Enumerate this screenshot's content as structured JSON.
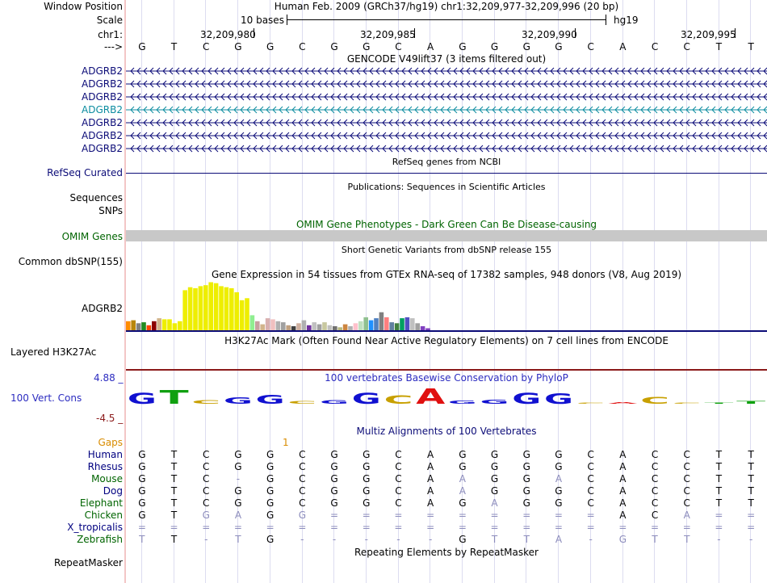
{
  "header": {
    "window_position_label": "Window Position",
    "scale_label": "Scale",
    "chrom_label": "chr1:",
    "strand_label": "--->",
    "assembly_title": "Human Feb. 2009 (GRCh37/hg19)   chr1:32,209,977-32,209,996 (20 bp)",
    "scale_text": "10 bases",
    "scale_db": "hg19",
    "positions": [
      "32,209,980",
      "32,209,985",
      "32,209,990",
      "32,209,995"
    ]
  },
  "reference_bases": [
    "G",
    "T",
    "C",
    "G",
    "G",
    "C",
    "G",
    "G",
    "C",
    "A",
    "G",
    "G",
    "G",
    "G",
    "C",
    "A",
    "C",
    "C",
    "T",
    "T"
  ],
  "gencode": {
    "title": "GENCODE V49lift37 (3 items filtered out)",
    "genes": [
      "ADGRB2",
      "ADGRB2",
      "ADGRB2",
      "ADGRB2",
      "ADGRB2",
      "ADGRB2",
      "ADGRB2"
    ]
  },
  "refseq": {
    "title": "RefSeq genes from NCBI",
    "label": "RefSeq Curated"
  },
  "publications": {
    "title": "Publications: Sequences in Scientific Articles",
    "label": "Sequences"
  },
  "snps": {
    "label": "SNPs"
  },
  "omim": {
    "title": "OMIM Gene Phenotypes - Dark Green Can Be Disease-causing",
    "label": "OMIM Genes"
  },
  "dbsnp": {
    "title": "Short Genetic Variants from dbSNP release 155",
    "label": "Common dbSNP(155)"
  },
  "gtex": {
    "title": "Gene Expression in 54 tissues from GTEx RNA-seq of 17382 samples, 948 donors (V8, Aug 2019)",
    "label": "ADGRB2"
  },
  "h3k27ac": {
    "title": "H3K27Ac Mark (Often Found Near Active Regulatory Elements) on 7 cell lines from ENCODE",
    "label": "Layered H3K27Ac"
  },
  "conservation": {
    "title": "100 vertebrates Basewise Conservation by PhyloP",
    "label": "100 Vert. Cons",
    "max": "4.88 _",
    "min": "-4.5 _"
  },
  "multiz": {
    "title": "Multiz Alignments of 100 Vertebrates",
    "gaps_label": "Gaps",
    "gaps_value": "1",
    "species": [
      {
        "name": "Human",
        "color": "#000080",
        "bases": [
          "G",
          "T",
          "C",
          "G",
          "G",
          "C",
          "G",
          "G",
          "C",
          "A",
          "G",
          "G",
          "G",
          "G",
          "C",
          "A",
          "C",
          "C",
          "T",
          "T"
        ]
      },
      {
        "name": "Rhesus",
        "color": "#000080",
        "bases": [
          "G",
          "T",
          "C",
          "G",
          "G",
          "C",
          "G",
          "G",
          "C",
          "A",
          "G",
          "G",
          "G",
          "G",
          "C",
          "A",
          "C",
          "C",
          "T",
          "T"
        ]
      },
      {
        "name": "Mouse",
        "color": "#006400",
        "bases": [
          "G",
          "T",
          "C",
          "-",
          "G",
          "C",
          "G",
          "G",
          "C",
          "A",
          "A",
          "G",
          "G",
          "A",
          "C",
          "A",
          "C",
          "C",
          "T",
          "T"
        ]
      },
      {
        "name": "Dog",
        "color": "#000080",
        "bases": [
          "G",
          "T",
          "C",
          "G",
          "G",
          "C",
          "G",
          "G",
          "C",
          "A",
          "A",
          "G",
          "G",
          "G",
          "C",
          "A",
          "C",
          "C",
          "T",
          "T"
        ]
      },
      {
        "name": "Elephant",
        "color": "#006400",
        "bases": [
          "G",
          "T",
          "C",
          "G",
          "G",
          "C",
          "G",
          "G",
          "C",
          "A",
          "G",
          "A",
          "G",
          "G",
          "C",
          "A",
          "C",
          "C",
          "T",
          "T"
        ]
      },
      {
        "name": "Chicken",
        "color": "#006400",
        "bases": [
          "G",
          "T",
          "G",
          "A",
          "G",
          "G",
          "=",
          "=",
          "=",
          "=",
          "=",
          "=",
          "=",
          "=",
          "=",
          "A",
          "C",
          "A",
          "=",
          "="
        ]
      },
      {
        "name": "X_tropicalis",
        "color": "#000080",
        "bases": [
          "=",
          "=",
          "=",
          "=",
          "=",
          "=",
          "=",
          "=",
          "=",
          "=",
          "=",
          "=",
          "=",
          "=",
          "=",
          "=",
          "=",
          "=",
          "=",
          "="
        ]
      },
      {
        "name": "Zebrafish",
        "color": "#006400",
        "bases": [
          "T",
          "T",
          "-",
          "T",
          "G",
          "-",
          "-",
          "-",
          "-",
          "-",
          "G",
          "T",
          "T",
          "A",
          "-",
          "G",
          "T",
          "T",
          "-",
          "-"
        ]
      }
    ]
  },
  "repeatmasker": {
    "title": "Repeating Elements by RepeatMasker",
    "label": "RepeatMasker"
  },
  "colors": {
    "gene_blue": "#0c0c78",
    "gene_teal": "#0c8ca0",
    "omim_green": "#006400",
    "omim_bar": "#c8c8c8",
    "refseq_line": "#0c0c78",
    "h3k27ac_line": "#8b1a1a",
    "gaps_orange": "#d98c00",
    "cons_blue": "#2c2cc0"
  },
  "gtex_bars": {
    "values": [
      18,
      20,
      14,
      16,
      10,
      18,
      24,
      22,
      22,
      14,
      18,
      80,
      86,
      84,
      88,
      90,
      96,
      94,
      88,
      86,
      84,
      76,
      60,
      64,
      30,
      18,
      12,
      24,
      22,
      18,
      16,
      10,
      8,
      14,
      20,
      10,
      16,
      12,
      16,
      10,
      8,
      6,
      12,
      8,
      14,
      18,
      26,
      20,
      24,
      36,
      26,
      16,
      14,
      24,
      26,
      24,
      14,
      8,
      4
    ],
    "colors": [
      "#ff8c00",
      "#b8860b",
      "#808080",
      "#228b22",
      "#ff4500",
      "#8b0000",
      "#d2b48c",
      "#eeee00",
      "#eeee00",
      "#eeee00",
      "#eeee00",
      "#eeee00",
      "#eeee00",
      "#eeee00",
      "#eeee00",
      "#eeee00",
      "#eeee00",
      "#eeee00",
      "#eeee00",
      "#eeee00",
      "#eeee00",
      "#eeee00",
      "#eeee00",
      "#eeee00",
      "#90ee90",
      "#c8a0a0",
      "#d2b48c",
      "#d9b0b0",
      "#f0c0c0",
      "#b0b0b0",
      "#a0a0a0",
      "#c0a080",
      "#404040",
      "#d0b0a0",
      "#b0b0b0",
      "#7030a0",
      "#c0c0c0",
      "#a0a0a0",
      "#c8c8a0",
      "#c0c0c0",
      "#707070",
      "#b8b880",
      "#cd853f",
      "#b0b0b0",
      "#ffc0cb",
      "#c0e0c0",
      "#90c090",
      "#1e90ff",
      "#5080c0",
      "#808080",
      "#ff7f7f",
      "#6080a0",
      "#408040",
      "#00a060",
      "#5050c0",
      "#c0c0c0",
      "#a0a0a0",
      "#8040c0",
      "#8040c0"
    ]
  },
  "phylop": {
    "values": [
      3.2,
      4.0,
      1.0,
      1.8,
      2.6,
      0.8,
      1.0,
      3.2,
      2.4,
      4.5,
      0.9,
      1.2,
      3.2,
      3.0,
      0.3,
      -0.5,
      2.0,
      0.2,
      0.1,
      0.8
    ],
    "bases": [
      "G",
      "T",
      "C",
      "G",
      "G",
      "C",
      "G",
      "G",
      "C",
      "A",
      "G",
      "G",
      "G",
      "G",
      "C",
      "A",
      "C",
      "C",
      "T",
      "T"
    ]
  }
}
